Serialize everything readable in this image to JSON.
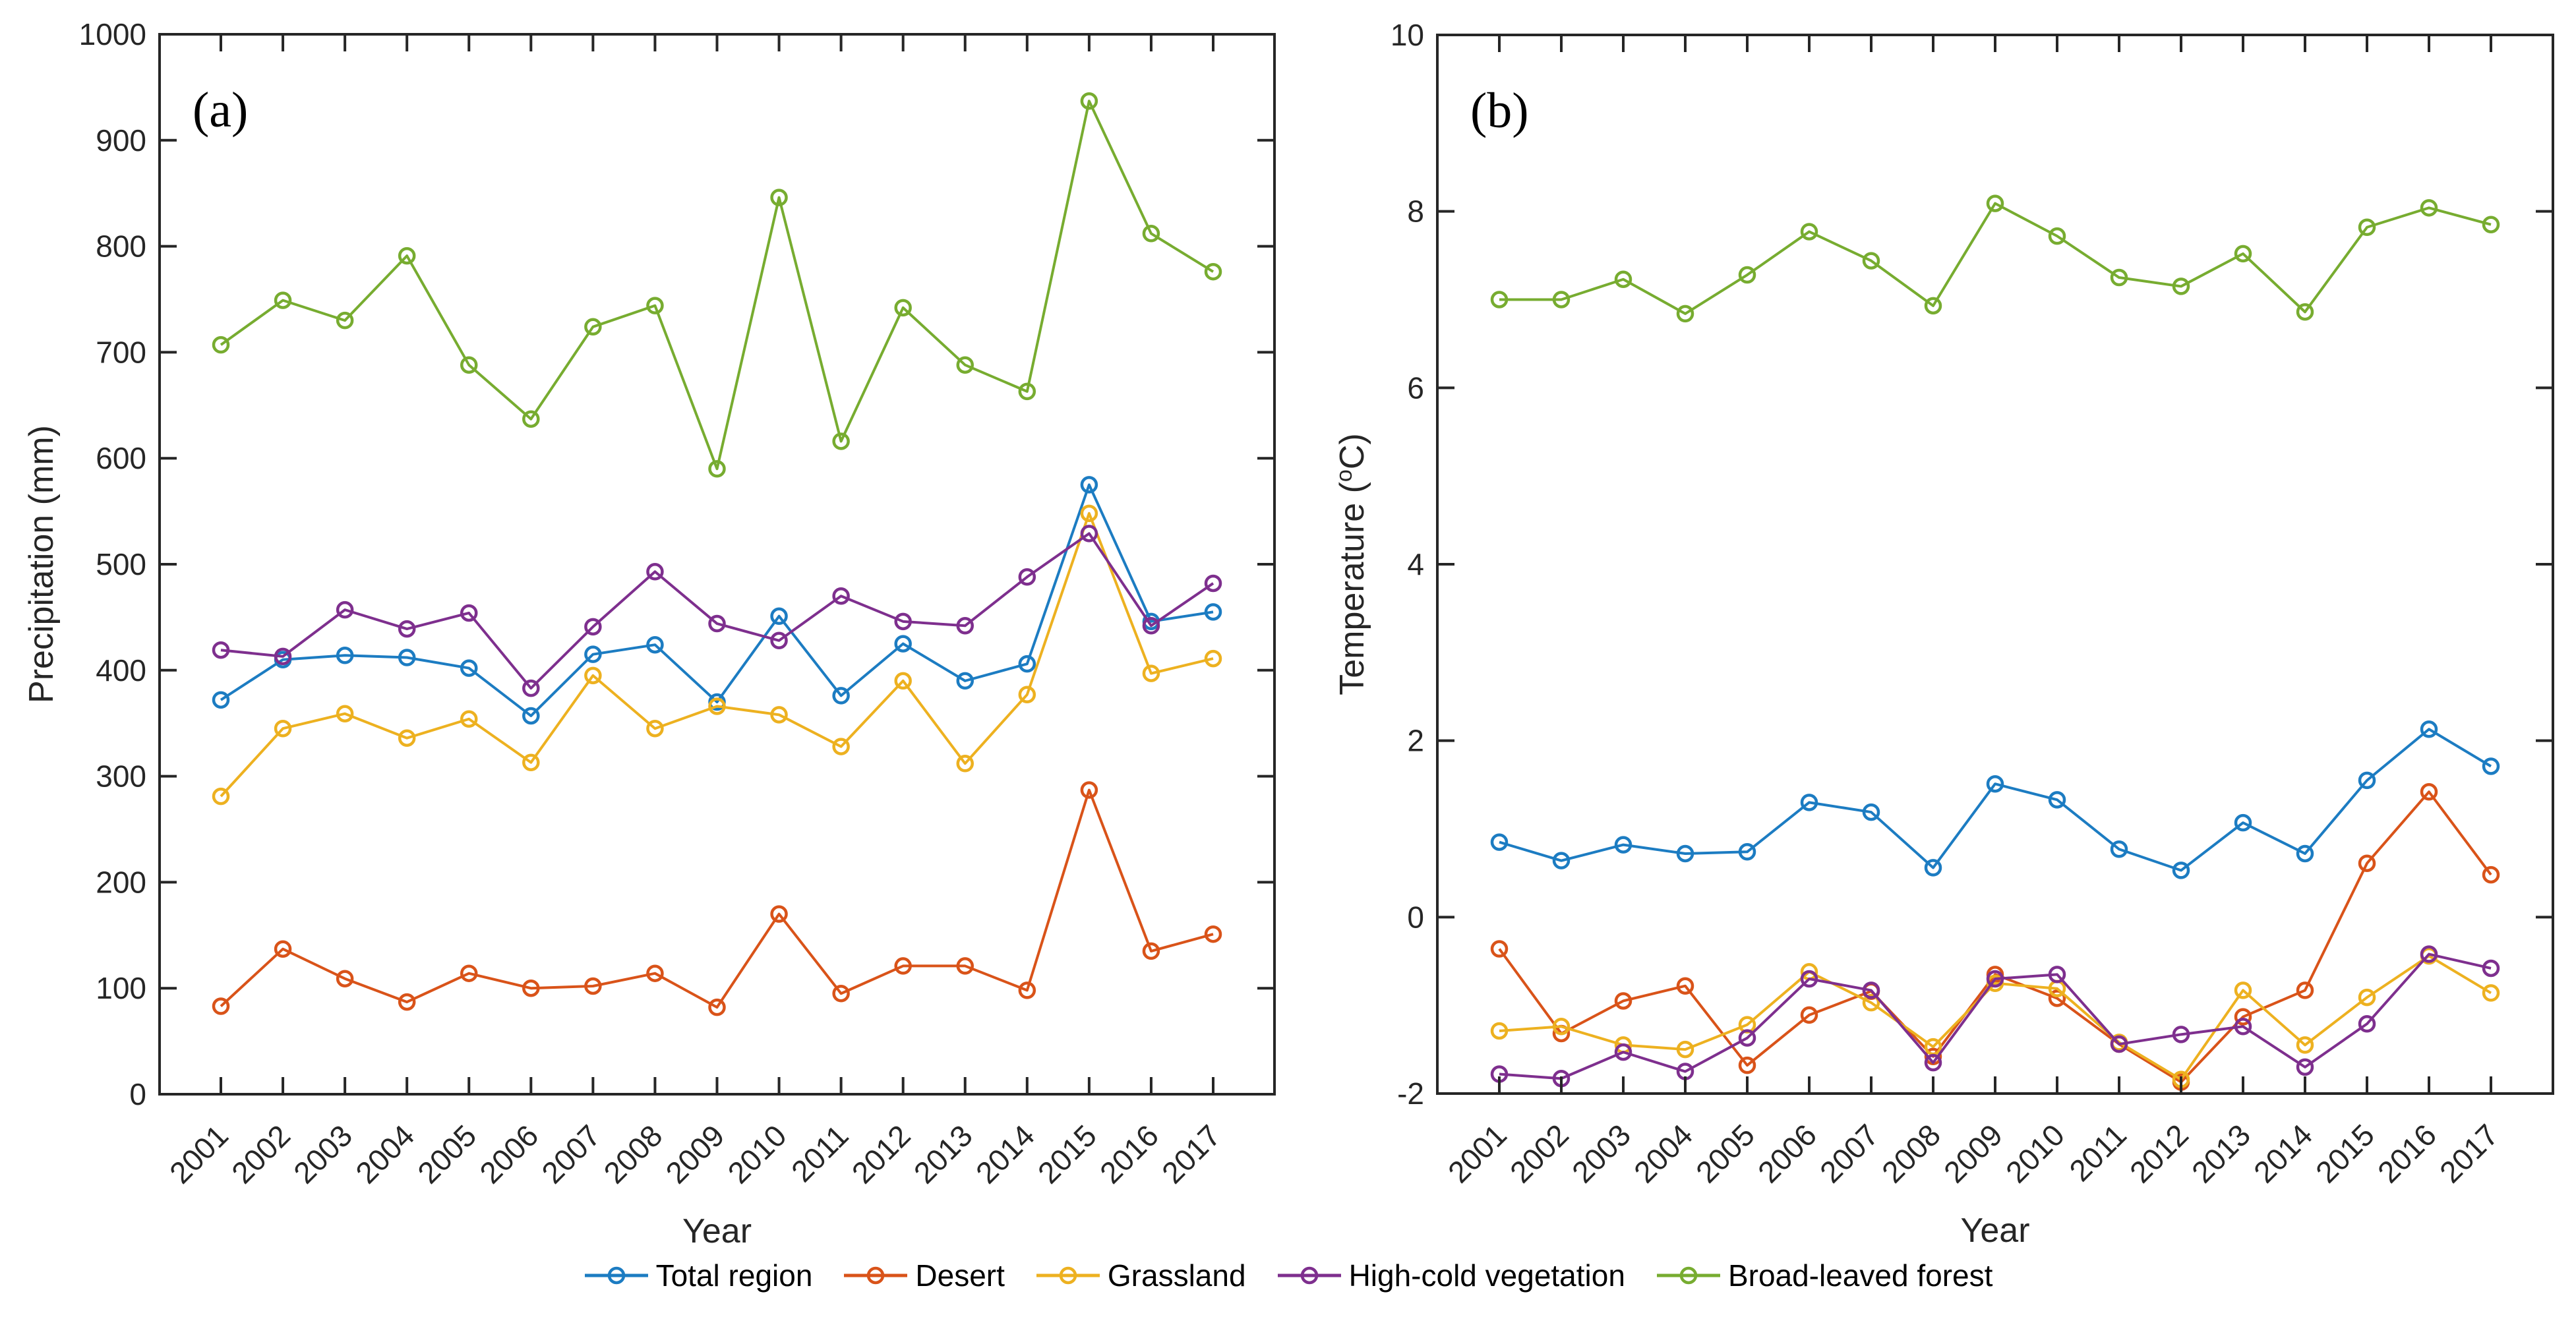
{
  "figure": {
    "background": "#ffffff",
    "axis_color": "#262626",
    "panel_a_label": "(a)",
    "panel_b_label": "(b)"
  },
  "legend": {
    "items": [
      {
        "label": "Total region",
        "color": "#1C7CC2"
      },
      {
        "label": "Desert",
        "color": "#D95319"
      },
      {
        "label": "Grassland",
        "color": "#EDB120"
      },
      {
        "label": "High-cold vegetation",
        "color": "#7E2F8E"
      },
      {
        "label": "Broad-leaved forest",
        "color": "#77AC30"
      }
    ]
  },
  "chart_data": [
    {
      "type": "line",
      "panel_label": "(a)",
      "xlabel": "Year",
      "ylabel": "Precipitation (mm)",
      "ylabel_parts": null,
      "x": [
        2001,
        2002,
        2003,
        2004,
        2005,
        2006,
        2007,
        2008,
        2009,
        2010,
        2011,
        2012,
        2013,
        2014,
        2015,
        2016,
        2017
      ],
      "ylim": [
        0,
        1000
      ],
      "ytick_step": 100,
      "grid": false,
      "legend_position": "bottom",
      "marker": "open-circle",
      "series": [
        {
          "name": "Total region",
          "color": "#1C7CC2",
          "values": [
            372,
            410,
            414,
            412,
            402,
            357,
            415,
            424,
            370,
            451,
            376,
            425,
            390,
            406,
            575,
            446,
            455
          ]
        },
        {
          "name": "Desert",
          "color": "#D95319",
          "values": [
            83,
            137,
            109,
            87,
            114,
            100,
            102,
            114,
            82,
            170,
            95,
            121,
            121,
            98,
            287,
            135,
            151
          ]
        },
        {
          "name": "Grassland",
          "color": "#EDB120",
          "values": [
            281,
            345,
            359,
            336,
            354,
            313,
            395,
            345,
            366,
            358,
            328,
            390,
            312,
            377,
            548,
            397,
            411
          ]
        },
        {
          "name": "High-cold vegetation",
          "color": "#7E2F8E",
          "values": [
            419,
            413,
            457,
            439,
            454,
            383,
            441,
            493,
            444,
            428,
            470,
            446,
            442,
            488,
            529,
            442,
            482
          ]
        },
        {
          "name": "Broad-leaved forest",
          "color": "#77AC30",
          "values": [
            707,
            749,
            730,
            791,
            688,
            637,
            724,
            744,
            590,
            846,
            616,
            742,
            688,
            663,
            937,
            812,
            776
          ]
        }
      ]
    },
    {
      "type": "line",
      "panel_label": "(b)",
      "xlabel": "Year",
      "ylabel": "Temperature (oC)",
      "ylabel_parts": [
        "Temperature (",
        "o",
        "C)"
      ],
      "x": [
        2001,
        2002,
        2003,
        2004,
        2005,
        2006,
        2007,
        2008,
        2009,
        2010,
        2011,
        2012,
        2013,
        2014,
        2015,
        2016,
        2017
      ],
      "ylim": [
        -2,
        10
      ],
      "ytick_step": 2,
      "grid": false,
      "legend_position": "bottom",
      "marker": "open-circle",
      "series": [
        {
          "name": "Total region",
          "color": "#1C7CC2",
          "values": [
            0.85,
            0.64,
            0.82,
            0.72,
            0.74,
            1.3,
            1.19,
            0.56,
            1.51,
            1.33,
            0.77,
            0.53,
            1.07,
            0.72,
            1.55,
            2.13,
            1.71
          ]
        },
        {
          "name": "Desert",
          "color": "#D95319",
          "values": [
            -0.36,
            -1.32,
            -0.95,
            -0.78,
            -1.68,
            -1.11,
            -0.84,
            -1.58,
            -0.65,
            -0.92,
            -1.44,
            -1.87,
            -1.13,
            -0.83,
            0.61,
            1.42,
            0.48
          ]
        },
        {
          "name": "Grassland",
          "color": "#EDB120",
          "values": [
            -1.29,
            -1.24,
            -1.45,
            -1.5,
            -1.22,
            -0.62,
            -0.97,
            -1.47,
            -0.75,
            -0.81,
            -1.42,
            -1.84,
            -0.83,
            -1.45,
            -0.91,
            -0.44,
            -0.86
          ]
        },
        {
          "name": "High-cold vegetation",
          "color": "#7E2F8E",
          "values": [
            -1.78,
            -1.83,
            -1.53,
            -1.75,
            -1.37,
            -0.7,
            -0.83,
            -1.65,
            -0.7,
            -0.65,
            -1.44,
            -1.33,
            -1.24,
            -1.7,
            -1.21,
            -0.42,
            -0.58
          ]
        },
        {
          "name": "Broad-leaved forest",
          "color": "#77AC30",
          "values": [
            7.0,
            7.0,
            7.23,
            6.84,
            7.28,
            7.77,
            7.44,
            6.93,
            8.09,
            7.72,
            7.25,
            7.15,
            7.52,
            6.86,
            7.82,
            8.04,
            7.85
          ]
        }
      ]
    }
  ]
}
